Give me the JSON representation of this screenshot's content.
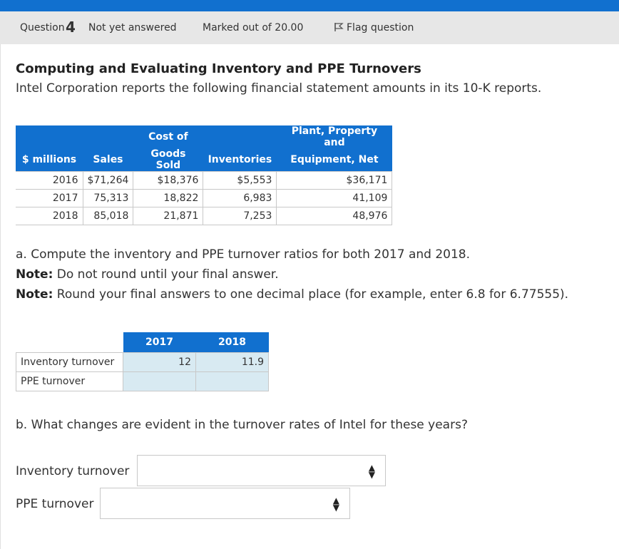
{
  "header": {
    "question_word": "Question",
    "question_number": "4",
    "status": "Not yet answered",
    "marks": "Marked out of 20.00",
    "flag_label": "Flag question"
  },
  "title": "Computing and Evaluating Inventory and PPE Turnovers",
  "intro": "Intel Corporation reports the following financial statement amounts in its 10-K reports.",
  "financial_table": {
    "headers": [
      "$ millions",
      "Sales",
      "Cost of Goods Sold",
      "Inventories",
      "Plant, Property and Equipment, Net"
    ],
    "header_lines": {
      "cogs": [
        "Cost of",
        "Goods Sold"
      ],
      "ppe": [
        "Plant, Property and",
        "Equipment, Net"
      ]
    },
    "rows": [
      {
        "year": "2016",
        "sales": "$71,264",
        "cogs": "$18,376",
        "inventories": "$5,553",
        "ppe": "$36,171"
      },
      {
        "year": "2017",
        "sales": "75,313",
        "cogs": "18,822",
        "inventories": "6,983",
        "ppe": "41,109"
      },
      {
        "year": "2018",
        "sales": "85,018",
        "cogs": "21,871",
        "inventories": "7,253",
        "ppe": "48,976"
      }
    ]
  },
  "part_a": {
    "prompt": "a. Compute the inventory and PPE turnover ratios for both 2017 and 2018.",
    "note1_label": "Note:",
    "note1_text": " Do not round until your final answer.",
    "note2_label": "Note:",
    "note2_text": " Round your final answers to one decimal place (for example, enter 6.8 for 6.77555)."
  },
  "answer_table": {
    "col_2017": "2017",
    "col_2018": "2018",
    "rows": [
      {
        "label": "Inventory turnover",
        "v2017": "12",
        "v2018": "11.9"
      },
      {
        "label": "PPE turnover",
        "v2017": "",
        "v2018": ""
      }
    ]
  },
  "part_b": {
    "prompt": "b. What changes are evident in the turnover rates of Intel for these years?",
    "inventory_label": "Inventory turnover",
    "inventory_value": "",
    "ppe_label": "PPE turnover",
    "ppe_value": ""
  }
}
